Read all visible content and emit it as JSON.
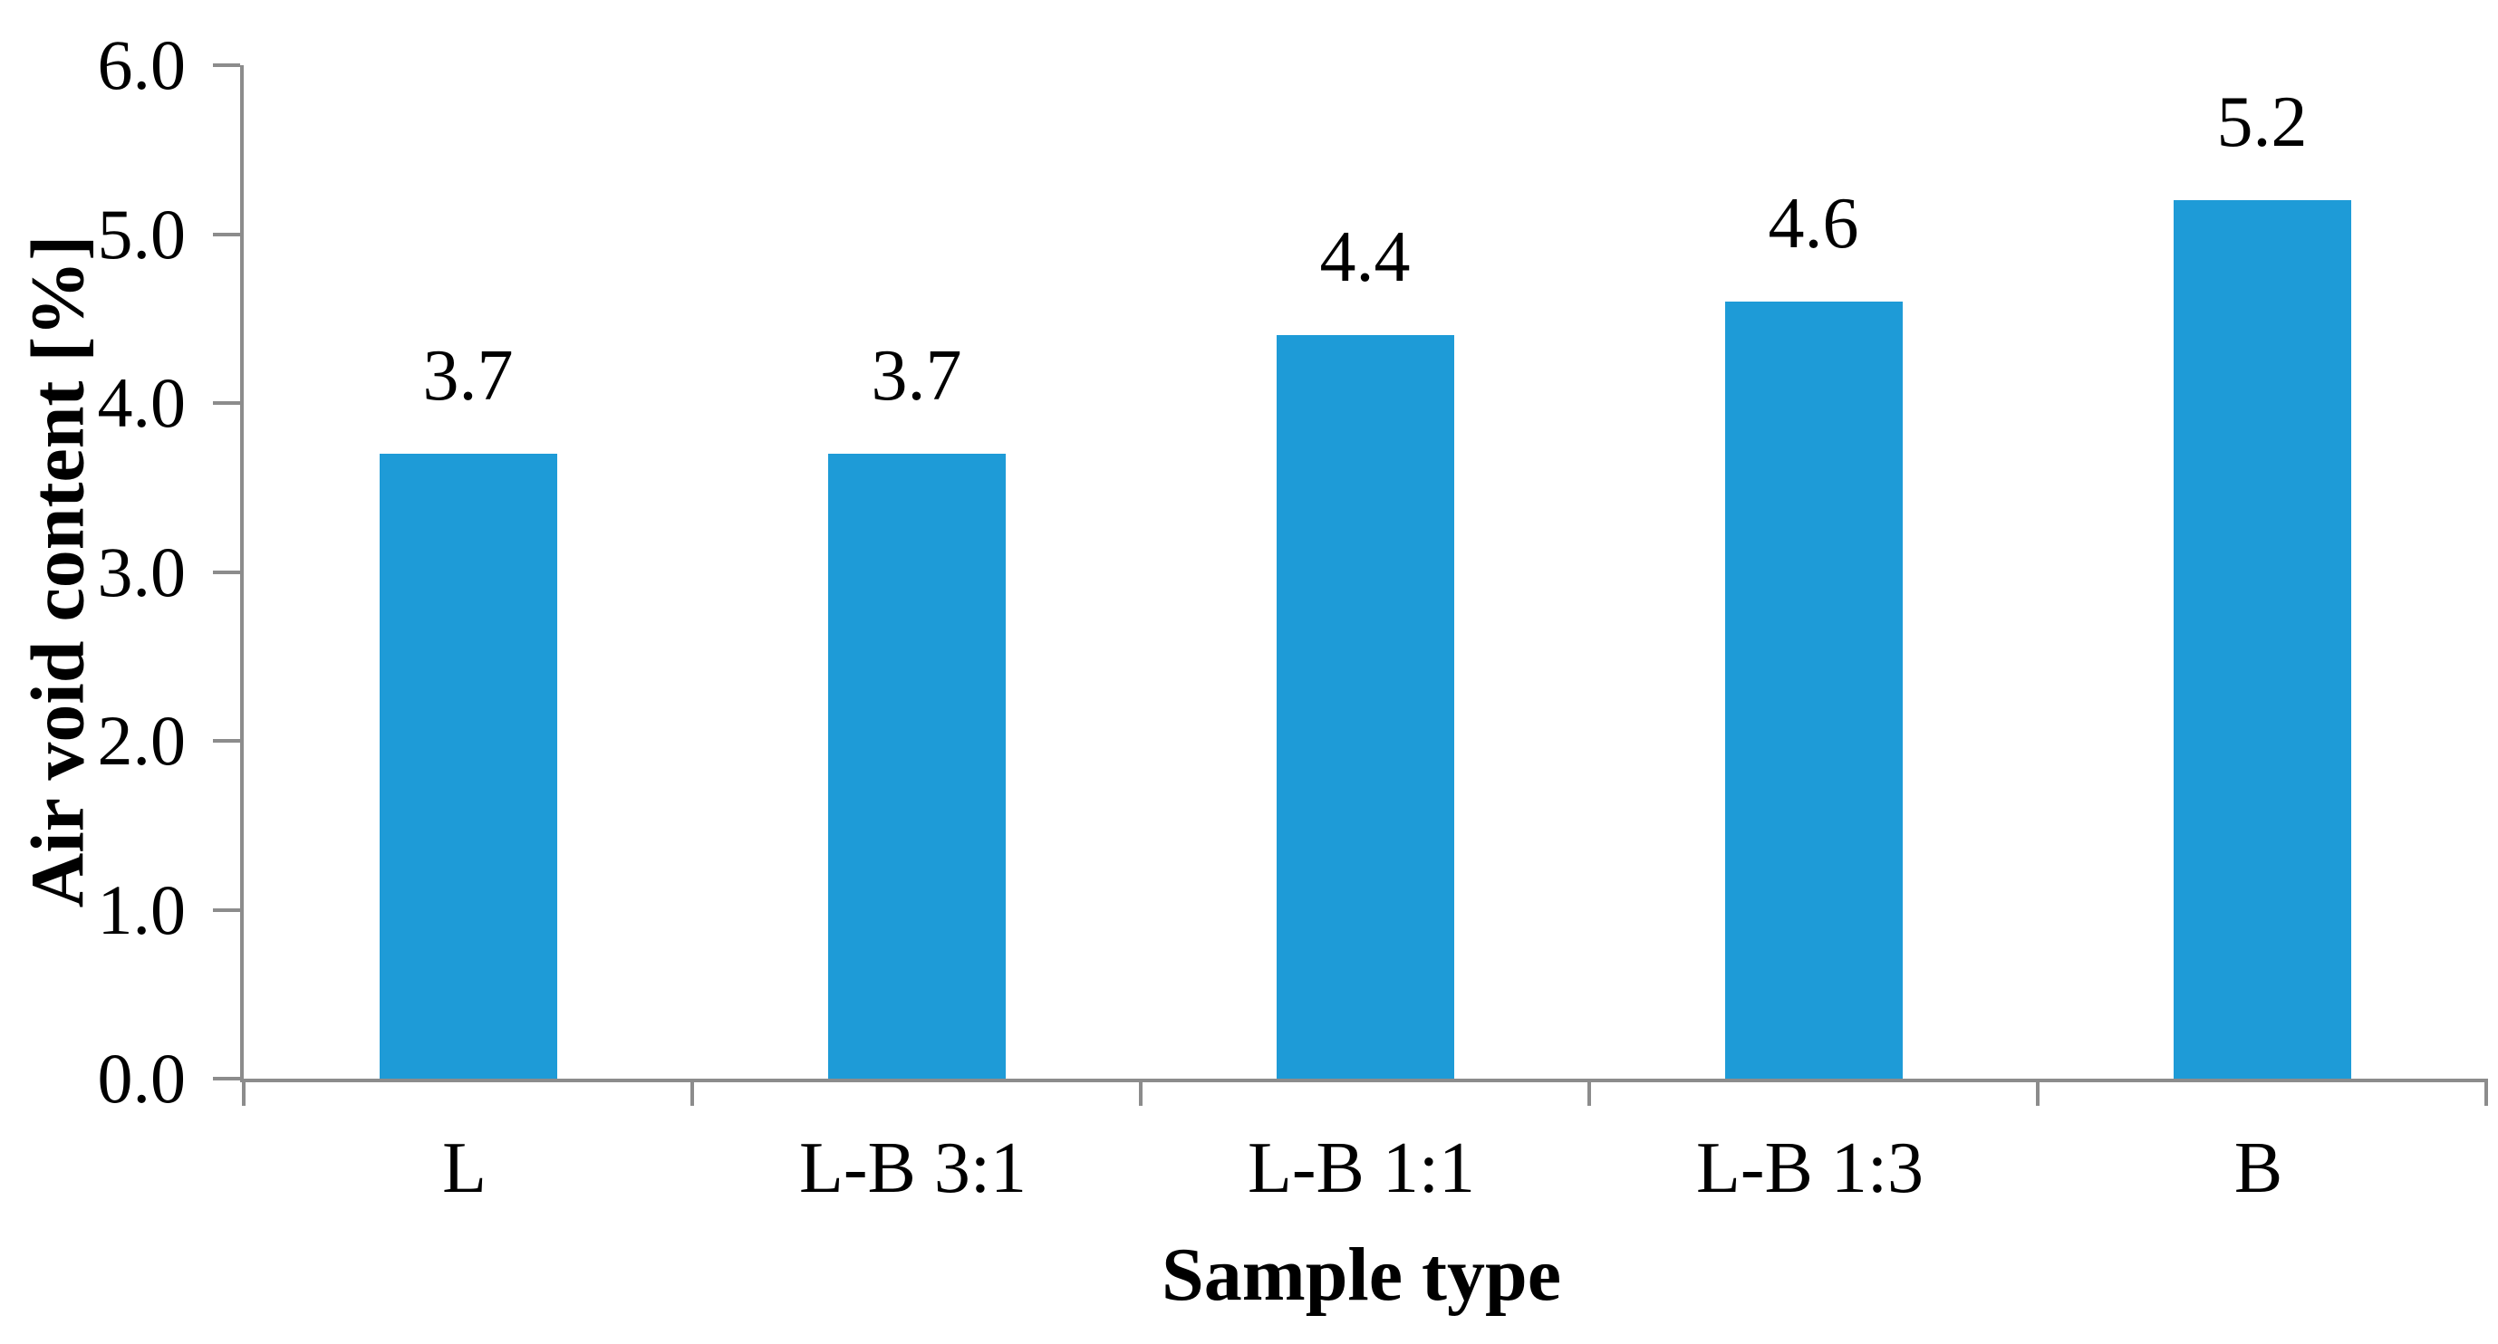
{
  "chart_data": {
    "type": "bar",
    "title": "",
    "xlabel": "Sample type",
    "ylabel": "Air void content [%]",
    "categories": [
      "L",
      "L-B 3:1",
      "L-B 1:1",
      "L-B 1:3",
      "B"
    ],
    "series": [
      {
        "name": "Air void content",
        "values": [
          3.7,
          3.7,
          4.4,
          4.6,
          5.2
        ]
      }
    ],
    "data_labels": [
      "3.7",
      "3.7",
      "4.4",
      "4.6",
      "5.2"
    ],
    "ylim": [
      0.0,
      6.0
    ],
    "y_ticks": [
      "0.0",
      "1.0",
      "2.0",
      "3.0",
      "4.0",
      "5.0",
      "6.0"
    ],
    "grid": "off",
    "legend": "none",
    "colors": {
      "bar": "#1e9bd7",
      "axis": "#8c8c8c",
      "text": "#000000",
      "background": "#ffffff"
    }
  }
}
